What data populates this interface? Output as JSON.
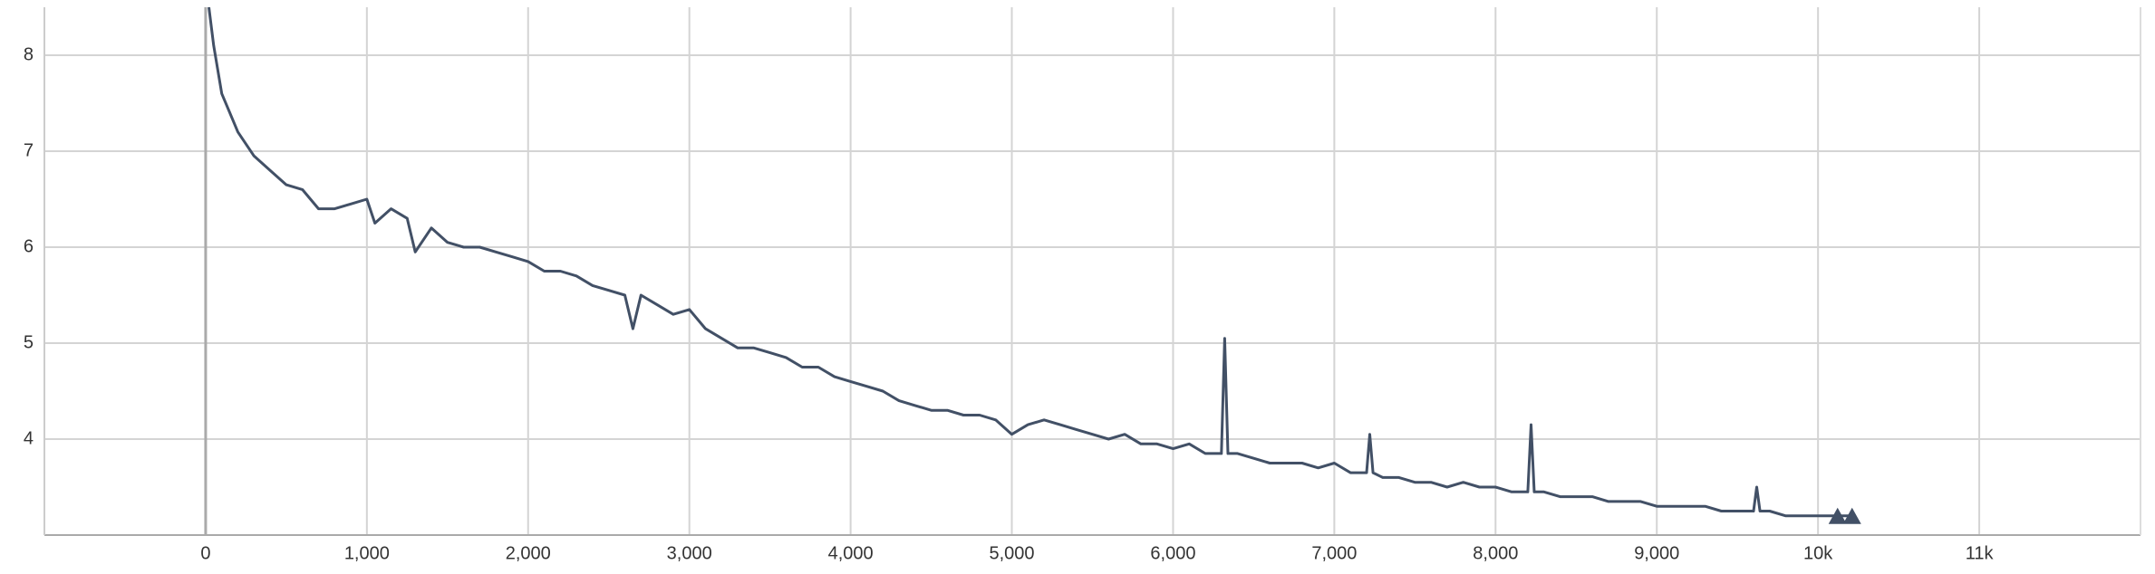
{
  "chart_data": {
    "type": "line",
    "x": [
      20,
      50,
      100,
      150,
      200,
      300,
      400,
      500,
      600,
      700,
      800,
      900,
      1000,
      1050,
      1150,
      1250,
      1300,
      1400,
      1500,
      1600,
      1700,
      1800,
      1900,
      2000,
      2100,
      2200,
      2300,
      2400,
      2500,
      2600,
      2650,
      2700,
      2800,
      2900,
      3000,
      3100,
      3200,
      3300,
      3400,
      3500,
      3600,
      3700,
      3800,
      3900,
      4000,
      4100,
      4200,
      4300,
      4400,
      4500,
      4600,
      4700,
      4800,
      4900,
      5000,
      5100,
      5200,
      5300,
      5400,
      5500,
      5600,
      5700,
      5800,
      5900,
      6000,
      6100,
      6200,
      6300,
      6320,
      6340,
      6400,
      6500,
      6600,
      6700,
      6800,
      6900,
      7000,
      7100,
      7200,
      7220,
      7240,
      7300,
      7400,
      7500,
      7600,
      7700,
      7800,
      7900,
      8000,
      8100,
      8200,
      8220,
      8240,
      8300,
      8400,
      8500,
      8600,
      8700,
      8800,
      8900,
      9000,
      9100,
      9200,
      9300,
      9400,
      9500,
      9600,
      9620,
      9640,
      9700,
      9800,
      9900,
      10000,
      10100,
      10200
    ],
    "series": [
      {
        "color": "#425066",
        "values": [
          8.5,
          8.1,
          7.6,
          7.4,
          7.2,
          6.95,
          6.8,
          6.65,
          6.6,
          6.4,
          6.4,
          6.45,
          6.5,
          6.25,
          6.4,
          6.3,
          5.95,
          6.2,
          6.05,
          6.0,
          6.0,
          5.95,
          5.9,
          5.85,
          5.75,
          5.75,
          5.7,
          5.6,
          5.55,
          5.5,
          5.15,
          5.5,
          5.4,
          5.3,
          5.35,
          5.15,
          5.05,
          4.95,
          4.95,
          4.9,
          4.85,
          4.75,
          4.75,
          4.65,
          4.6,
          4.55,
          4.5,
          4.4,
          4.35,
          4.3,
          4.3,
          4.25,
          4.25,
          4.2,
          4.05,
          4.15,
          4.2,
          4.15,
          4.1,
          4.05,
          4.0,
          4.05,
          3.95,
          3.95,
          3.9,
          3.95,
          3.85,
          3.85,
          5.05,
          3.85,
          3.85,
          3.8,
          3.75,
          3.75,
          3.75,
          3.7,
          3.75,
          3.65,
          3.65,
          4.05,
          3.65,
          3.6,
          3.6,
          3.55,
          3.55,
          3.5,
          3.55,
          3.5,
          3.5,
          3.45,
          3.45,
          4.15,
          3.45,
          3.45,
          3.4,
          3.4,
          3.4,
          3.35,
          3.35,
          3.35,
          3.3,
          3.3,
          3.3,
          3.3,
          3.25,
          3.25,
          3.25,
          3.5,
          3.25,
          3.25,
          3.2,
          3.2,
          3.2,
          3.2,
          3.2
        ]
      }
    ],
    "xlim": [
      -1000,
      12000
    ],
    "xticks": [
      0,
      {
        "value": 1000,
        "label": "1,000"
      },
      {
        "value": 2000,
        "label": "2,000"
      },
      {
        "value": 3000,
        "label": "3,000"
      },
      {
        "value": 4000,
        "label": "4,000"
      },
      {
        "value": 5000,
        "label": "5,000"
      },
      {
        "value": 6000,
        "label": "6,000"
      },
      {
        "value": 7000,
        "label": "7,000"
      },
      {
        "value": 8000,
        "label": "8,000"
      },
      {
        "value": 9000,
        "label": "9,000"
      },
      {
        "value": 10000,
        "label": "10k"
      },
      {
        "value": 11000,
        "label": "11k"
      }
    ],
    "ylim": [
      3,
      8.5
    ],
    "yticks": [
      4,
      5,
      6,
      7,
      8
    ],
    "grid": true
  }
}
